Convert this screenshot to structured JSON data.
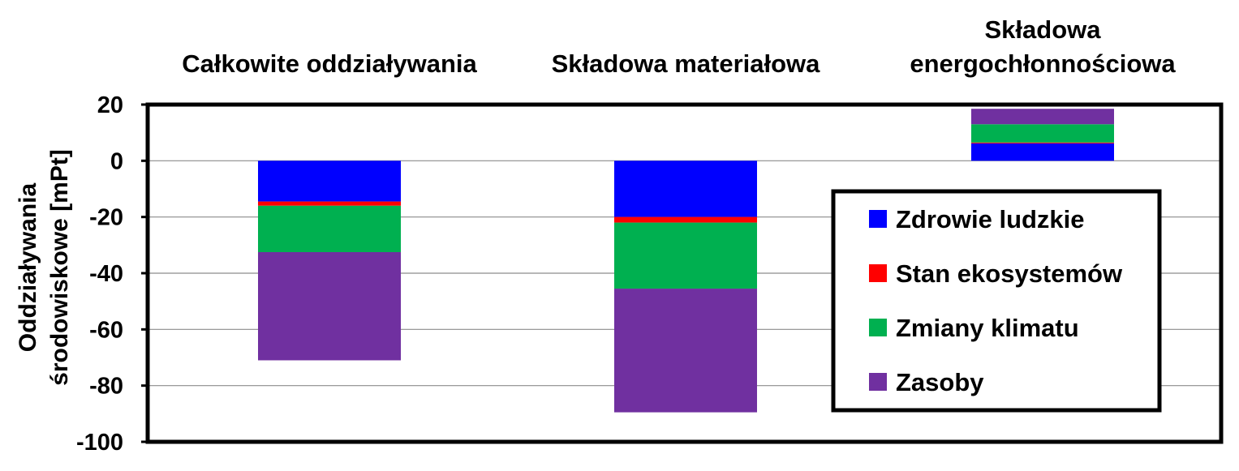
{
  "chart_data": {
    "type": "bar",
    "stacked": true,
    "title": "",
    "categories": [
      "Całkowite oddziaływania",
      "Składowa materiałowa",
      "Składowa energochłonnościowa"
    ],
    "category_lines": [
      [
        "Całkowite oddziaływania"
      ],
      [
        "Składowa materiałowa"
      ],
      [
        "Składowa",
        "energochłonnościowa"
      ]
    ],
    "series": [
      {
        "name": "Zdrowie ludzkie",
        "color": "#0000FF",
        "values": [
          -14.5,
          -20.0,
          6.2
        ]
      },
      {
        "name": "Stan ekosystemów",
        "color": "#FF0000",
        "values": [
          -1.5,
          -2.0,
          0.3
        ]
      },
      {
        "name": "Zmiany klimatu",
        "color": "#00B050",
        "values": [
          -16.5,
          -23.5,
          6.5
        ]
      },
      {
        "name": "Zasoby",
        "color": "#7030A0",
        "values": [
          -38.5,
          -44.0,
          5.5
        ]
      }
    ],
    "ylabel": "Oddziaływania środowiskowe [mPt]",
    "ylabel_lines": [
      "Oddziaływania",
      "środowiskowe [mPt]"
    ],
    "ylim": [
      -100,
      20
    ],
    "yticks": [
      20,
      0,
      -20,
      -40,
      -60,
      -80,
      -100
    ],
    "grid": true,
    "legend_position": "right",
    "category_label_position": "top"
  }
}
